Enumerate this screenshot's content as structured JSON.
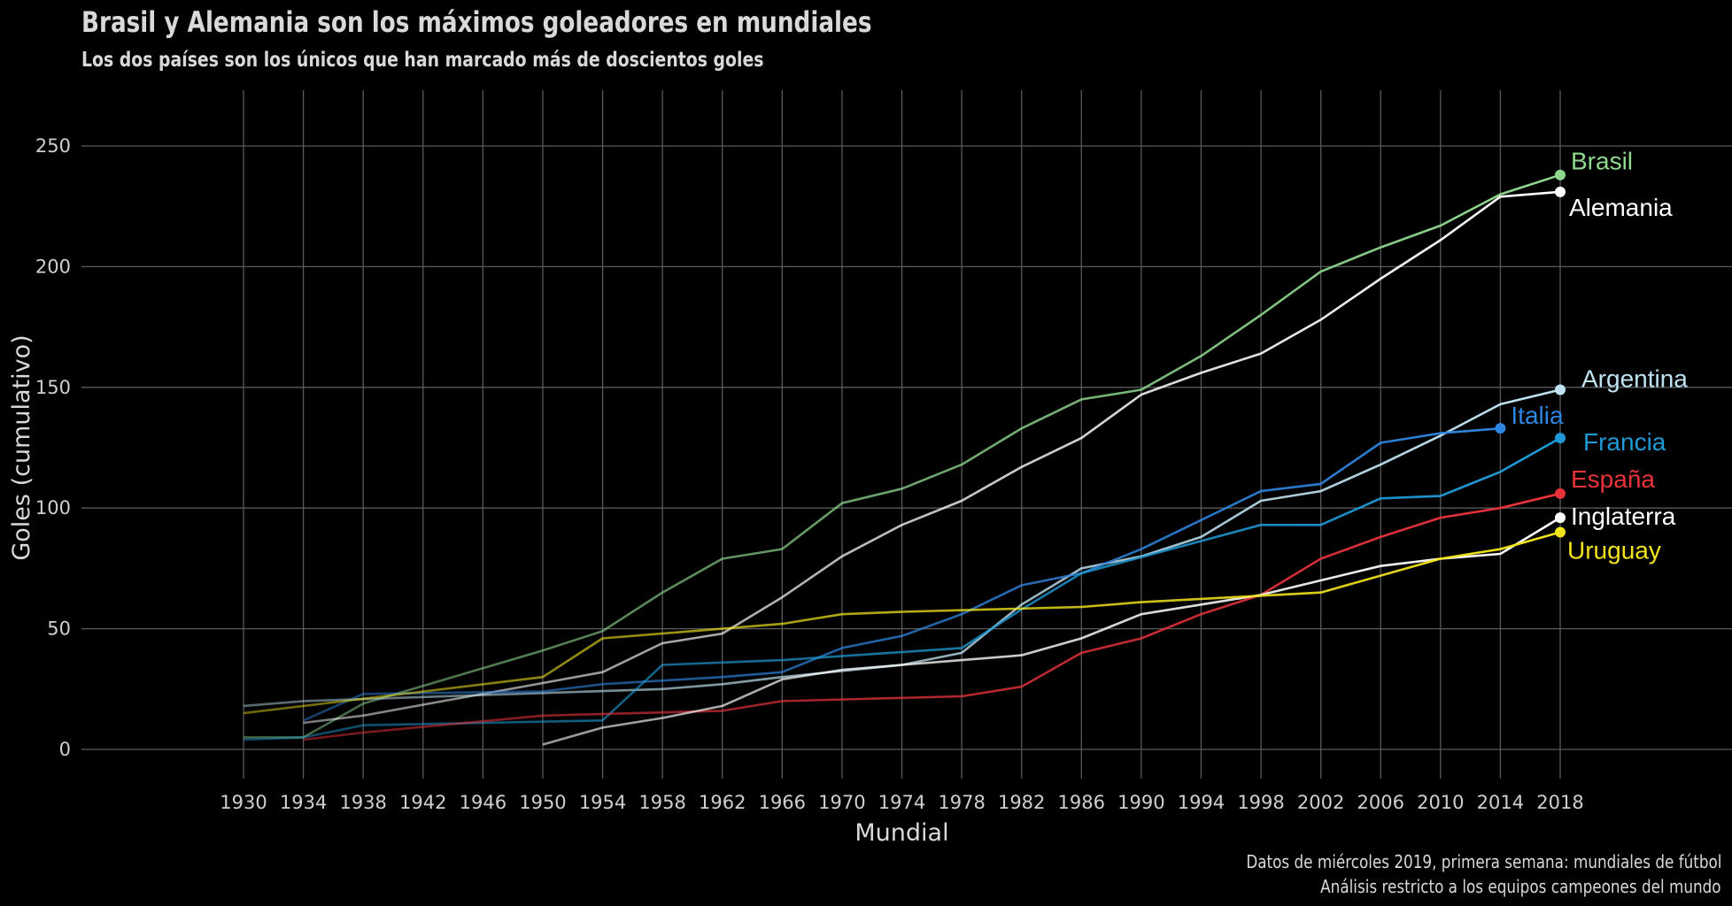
{
  "title": "Brasil y Alemania son los máximos goleadores en mundiales",
  "subtitle": "Los dos países son los únicos que han marcado más de doscientos goles",
  "caption_line1": "Datos de miércoles 2019, primera semana: mundiales de fútbol",
  "caption_line2": "Análisis restricto a los equipos campeones del mundo",
  "chart_data": {
    "type": "line",
    "title": "Brasil y Alemania son los máximos goleadores en mundiales",
    "subtitle": "Los dos países son los únicos que han marcado más de doscientos goles",
    "xlabel": "Mundial",
    "ylabel": "Goles (cumulativo)",
    "x_ticks": [
      1930,
      1934,
      1938,
      1942,
      1946,
      1950,
      1954,
      1958,
      1962,
      1966,
      1970,
      1974,
      1978,
      1982,
      1986,
      1990,
      1994,
      1998,
      2002,
      2006,
      2010,
      2014,
      2018
    ],
    "y_ticks": [
      0,
      50,
      100,
      150,
      200,
      250
    ],
    "xlim": [
      1930,
      2018
    ],
    "ylim": [
      0,
      250
    ],
    "grid": true,
    "legend": "direct labels at line ends",
    "series": [
      {
        "name": "Brasil",
        "color": "#8fd98f",
        "x": [
          1930,
          1934,
          1938,
          1950,
          1954,
          1958,
          1962,
          1966,
          1970,
          1974,
          1978,
          1982,
          1986,
          1990,
          1994,
          1998,
          2002,
          2006,
          2010,
          2014,
          2018
        ],
        "values": [
          5,
          5,
          19,
          41,
          49,
          65,
          79,
          83,
          102,
          108,
          118,
          133,
          145,
          149,
          163,
          180,
          198,
          208,
          217,
          230,
          238
        ]
      },
      {
        "name": "Alemania",
        "color": "#ffffff",
        "x": [
          1934,
          1938,
          1954,
          1958,
          1962,
          1966,
          1970,
          1974,
          1978,
          1982,
          1986,
          1990,
          1994,
          1998,
          2002,
          2006,
          2010,
          2014,
          2018
        ],
        "values": [
          11,
          14,
          32,
          44,
          48,
          63,
          80,
          93,
          103,
          117,
          129,
          147,
          156,
          164,
          178,
          195,
          211,
          229,
          231
        ]
      },
      {
        "name": "Argentina",
        "color": "#bfe3f2",
        "x": [
          1930,
          1934,
          1958,
          1962,
          1966,
          1974,
          1978,
          1982,
          1986,
          1990,
          1994,
          1998,
          2002,
          2006,
          2010,
          2014,
          2018
        ],
        "values": [
          18,
          20,
          25,
          27,
          30,
          35,
          40,
          60,
          75,
          80,
          88,
          103,
          107,
          118,
          130,
          143,
          149
        ]
      },
      {
        "name": "Italia",
        "color": "#2f86e0",
        "x": [
          1934,
          1938,
          1950,
          1954,
          1962,
          1966,
          1970,
          1974,
          1978,
          1982,
          1986,
          1990,
          1994,
          1998,
          2002,
          2006,
          2010,
          2014
        ],
        "values": [
          12,
          23,
          24,
          27,
          30,
          32,
          42,
          47,
          56,
          68,
          73,
          83,
          95,
          107,
          110,
          127,
          131,
          133
        ]
      },
      {
        "name": "Francia",
        "color": "#1f9ad6",
        "x": [
          1930,
          1934,
          1938,
          1954,
          1958,
          1966,
          1978,
          1982,
          1986,
          1998,
          2002,
          2006,
          2010,
          2014,
          2018
        ],
        "values": [
          4,
          5,
          10,
          12,
          35,
          37,
          42,
          58,
          73,
          93,
          93,
          104,
          105,
          115,
          129
        ]
      },
      {
        "name": "España",
        "color": "#e8333b",
        "x": [
          1934,
          1938,
          1950,
          1962,
          1966,
          1978,
          1982,
          1986,
          1990,
          1994,
          1998,
          2002,
          2006,
          2010,
          2014,
          2018
        ],
        "values": [
          4,
          7,
          14,
          16,
          20,
          22,
          26,
          40,
          46,
          56,
          64,
          79,
          88,
          96,
          100,
          106
        ]
      },
      {
        "name": "Inglaterra",
        "color": "#ffffff",
        "x": [
          1950,
          1954,
          1958,
          1962,
          1966,
          1970,
          1974,
          1978,
          1982,
          1986,
          1990,
          1994,
          1998,
          2002,
          2006,
          2010,
          2014,
          2018
        ],
        "values": [
          2,
          9,
          13,
          18,
          29,
          33,
          35,
          37,
          39,
          46,
          56,
          60,
          64,
          70,
          76,
          79,
          81,
          96
        ]
      },
      {
        "name": "Uruguay",
        "color": "#f2e31d",
        "x": [
          1930,
          1950,
          1954,
          1962,
          1966,
          1970,
          1974,
          1986,
          1990,
          2002,
          2010,
          2014,
          2018
        ],
        "values": [
          15,
          30,
          46,
          50,
          52,
          56,
          57,
          59,
          61,
          65,
          79,
          83,
          90
        ]
      }
    ]
  }
}
